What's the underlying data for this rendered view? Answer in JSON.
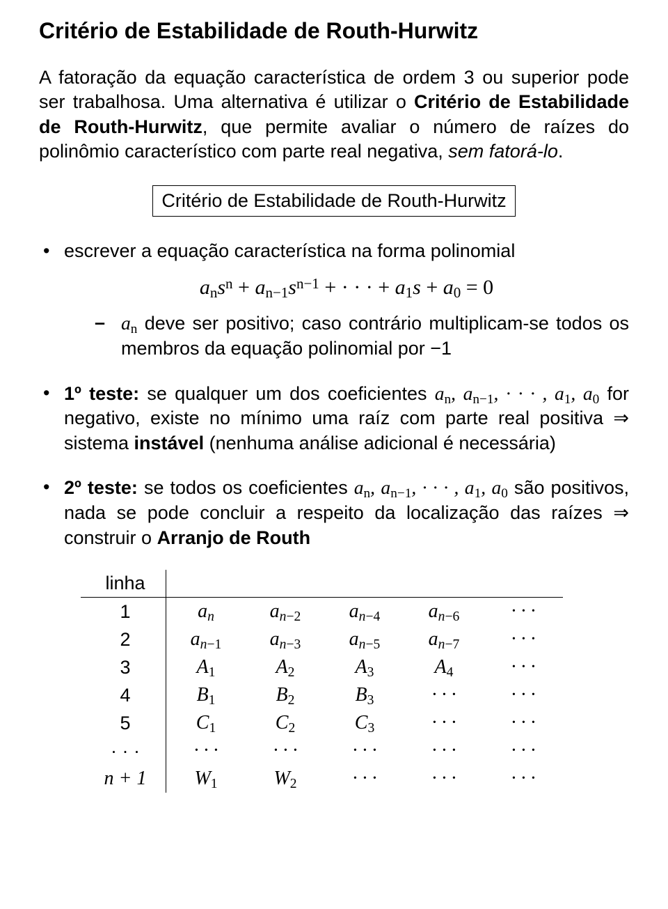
{
  "title": "Critério de Estabilidade de Routh-Hurwitz",
  "intro": {
    "part1": "A fatoração da equação característica de ordem 3 ou superior pode ser trabalhosa. Uma alternativa é utilizar o ",
    "bold1": "Critério de Estabilidade de Routh-Hurwitz",
    "part2": ", que permite avaliar o número de raízes do polinômio característico com parte real negativa, ",
    "ital": "sem fatorá-lo",
    "part3": "."
  },
  "box_label": "Critério de Estabilidade de Routh-Hurwitz",
  "b1": {
    "lead": "escrever a equação característica na forma polinomial",
    "sub": " deve ser positivo; caso contrário multiplicam-se todos os membros da equação polinomial por −1"
  },
  "b2": {
    "label": "1º teste:",
    "text1": " se qualquer um dos coeficientes ",
    "text2": " for negativo, existe no mínimo uma raíz com parte real positiva ⇒ sistema ",
    "bold": "instável",
    "text3": " (nenhuma análise adicional é necessária)"
  },
  "b3": {
    "label": "2º teste:",
    "text1": " se todos os coeficientes ",
    "text2": " são positivos, nada se pode concluir a respeito da localização das raízes ⇒ construir o ",
    "bold": "Arranjo de Routh"
  },
  "table": {
    "header": "linha",
    "rows": [
      {
        "lbl": "1",
        "cells": [
          "a_n",
          "a_n-2",
          "a_n-4",
          "a_n-6",
          "···"
        ]
      },
      {
        "lbl": "2",
        "cells": [
          "a_n-1",
          "a_n-3",
          "a_n-5",
          "a_n-7",
          "···"
        ]
      },
      {
        "lbl": "3",
        "cells": [
          "A_1",
          "A_2",
          "A_3",
          "A_4",
          "···"
        ]
      },
      {
        "lbl": "4",
        "cells": [
          "B_1",
          "B_2",
          "B_3",
          "···",
          "···"
        ]
      },
      {
        "lbl": "5",
        "cells": [
          "C_1",
          "C_2",
          "C_3",
          "···",
          "···"
        ]
      },
      {
        "lbl": "···",
        "cells": [
          "···",
          "···",
          "···",
          "···",
          "···"
        ]
      },
      {
        "lbl": "n+1",
        "cells": [
          "W_1",
          "W_2",
          "···",
          "···",
          "···"
        ]
      }
    ]
  }
}
